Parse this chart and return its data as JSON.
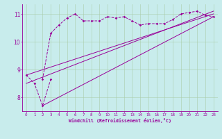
{
  "background_color": "#c8ecec",
  "line_color": "#990099",
  "grid_color": "#aaccaa",
  "xlabel": "Windchill (Refroidissement éolien,°C)",
  "xlabel_color": "#990099",
  "tick_color": "#990099",
  "x_ticks": [
    0,
    1,
    2,
    3,
    4,
    5,
    6,
    7,
    8,
    9,
    10,
    11,
    12,
    13,
    14,
    15,
    16,
    17,
    18,
    19,
    20,
    21,
    22,
    23
  ],
  "ylim": [
    7.5,
    11.35
  ],
  "xlim": [
    -0.5,
    23.5
  ],
  "yticks": [
    8,
    9,
    10,
    11
  ],
  "series1_x": [
    0,
    1,
    2,
    3
  ],
  "series1_y": [
    8.8,
    8.5,
    7.7,
    8.65
  ],
  "series2_x": [
    2,
    3,
    4,
    5,
    6,
    7,
    8,
    9,
    10,
    11,
    12,
    13,
    14,
    15,
    16,
    17,
    18,
    19,
    20,
    21,
    22,
    23
  ],
  "series2_y": [
    8.65,
    10.3,
    10.6,
    10.85,
    11.0,
    10.75,
    10.75,
    10.75,
    10.9,
    10.85,
    10.9,
    10.75,
    10.6,
    10.65,
    10.65,
    10.65,
    10.8,
    11.0,
    11.05,
    11.1,
    10.95,
    10.9
  ],
  "series3_x": [
    0,
    23
  ],
  "series3_y": [
    8.8,
    11.0
  ],
  "series4_x": [
    0,
    23
  ],
  "series4_y": [
    8.5,
    11.1
  ],
  "series5_x": [
    2,
    23
  ],
  "series5_y": [
    7.7,
    10.9
  ]
}
